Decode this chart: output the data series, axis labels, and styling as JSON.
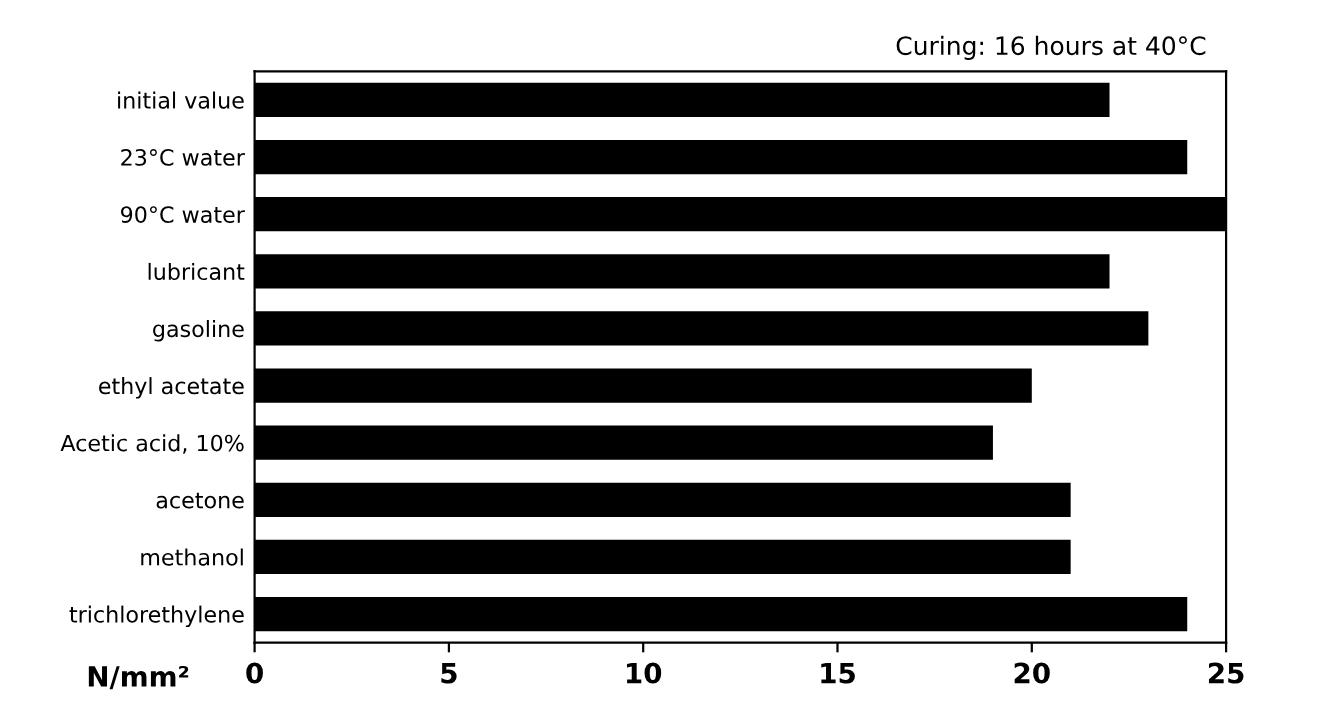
{
  "chart_data": {
    "type": "bar",
    "orientation": "horizontal",
    "categories": [
      "initial value",
      "23°C water",
      "90°C water",
      "lubricant",
      "gasoline",
      "ethyl acetate",
      "Acetic acid, 10%",
      "acetone",
      "methanol",
      "trichlorethylene"
    ],
    "values": [
      22,
      24,
      25,
      22,
      23,
      20,
      19,
      21,
      21,
      24
    ],
    "color": "#000000",
    "xlim": [
      0,
      25
    ],
    "xticks": [
      0,
      5,
      10,
      15,
      20,
      25
    ],
    "xlabel": "N/mm²",
    "annotations": [
      "Curing: 16 hours at 40°C"
    ],
    "grid": false
  }
}
